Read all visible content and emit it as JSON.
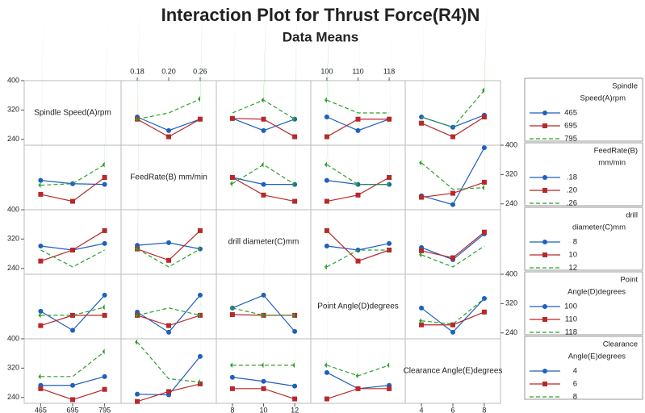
{
  "chart_data": {
    "type": "interaction_matrix",
    "title": "Interaction Plot for Thrust Force(R4)N",
    "subtitle": "Data Means",
    "ylim": [
      224,
      400
    ],
    "yticks": [
      240,
      320,
      400
    ],
    "colors": [
      "#1f5fbf",
      "#b8282a",
      "#2ca02c"
    ],
    "factors": [
      {
        "name": "Spindle Speed(A)rpm",
        "legend_title": [
          "Spindle",
          "Speed(A)rpm"
        ],
        "levels": [
          "465",
          "695",
          "795"
        ],
        "legend_levels": [
          "465",
          "695",
          "795"
        ]
      },
      {
        "name": "FeedRate(B) mm/min",
        "legend_title": [
          "FeedRate(B)",
          "mm/min"
        ],
        "levels": [
          "0.18",
          "0.20",
          "0.26"
        ],
        "legend_levels": [
          ".18",
          ".20",
          ".26"
        ]
      },
      {
        "name": "drill diameter(C)mm",
        "legend_title": [
          "drill",
          "diameter(C)mm"
        ],
        "levels": [
          "8",
          "10",
          "12"
        ],
        "legend_levels": [
          "8",
          "10",
          "12"
        ]
      },
      {
        "name": "Point Angle(D)degrees",
        "legend_title": [
          "Point",
          "Angle(D)degrees"
        ],
        "levels": [
          "100",
          "110",
          "118"
        ],
        "legend_levels": [
          "100",
          "110",
          "118"
        ]
      },
      {
        "name": "Clearance Angle(E)degrees",
        "legend_title": [
          "Clearance",
          "Angle(E)degrees"
        ],
        "levels": [
          "4",
          "6",
          "8"
        ],
        "legend_levels": [
          "4",
          "6",
          "8"
        ]
      }
    ],
    "panels": [
      [
        [
          [
            301,
            264,
            295
          ],
          [
            295,
            247,
            295
          ],
          [
            295,
            312,
            350
          ]
        ],
        [
          [
            297,
            264,
            295
          ],
          [
            297,
            295,
            247
          ],
          [
            312,
            347,
            295
          ]
        ],
        [
          [
            301,
            264,
            295
          ],
          [
            247,
            295,
            295
          ],
          [
            347,
            312,
            312
          ]
        ],
        [
          [
            301,
            273,
            306
          ],
          [
            284,
            247,
            301
          ],
          [
            301,
            273,
            374
          ]
        ]
      ],
      [
        [
          [
            304,
            295,
            293
          ],
          [
            266,
            247,
            312
          ],
          [
            291,
            295,
            347
          ]
        ],
        [
          [
            312,
            293,
            293
          ],
          [
            312,
            264,
            247
          ],
          [
            295,
            347,
            293
          ]
        ],
        [
          [
            304,
            293,
            293
          ],
          [
            247,
            264,
            312
          ],
          [
            347,
            293,
            293
          ]
        ],
        [
          [
            262,
            238,
            393
          ],
          [
            258,
            269,
            299
          ],
          [
            352,
            280,
            284
          ]
        ]
      ],
      [
        [
          [
            301,
            290,
            308
          ],
          [
            260,
            290,
            343
          ],
          [
            290,
            244,
            290
          ]
        ],
        [
          [
            303,
            310,
            293
          ],
          [
            293,
            262,
            343
          ],
          [
            293,
            244,
            293
          ]
        ],
        [
          [
            301,
            290,
            308
          ],
          [
            343,
            260,
            290
          ],
          [
            244,
            290,
            290
          ]
        ],
        [
          [
            297,
            264,
            334
          ],
          [
            288,
            269,
            339
          ],
          [
            277,
            244,
            301
          ]
        ]
      ],
      [
        [
          [
            299,
            247,
            343
          ],
          [
            260,
            288,
            288
          ],
          [
            288,
            288,
            310
          ]
        ],
        [
          [
            297,
            242,
            343
          ],
          [
            288,
            260,
            288
          ],
          [
            288,
            308,
            288
          ]
        ],
        [
          [
            308,
            343,
            244
          ],
          [
            290,
            288,
            288
          ],
          [
            308,
            288,
            288
          ]
        ],
        [
          [
            308,
            242,
            334
          ],
          [
            262,
            262,
            297
          ],
          [
            273,
            264,
            334
          ]
        ]
      ],
      [
        [
          [
            273,
            273,
            297
          ],
          [
            264,
            234,
            262
          ],
          [
            297,
            297,
            365
          ]
        ],
        [
          [
            249,
            247,
            352
          ],
          [
            229,
            256,
            277
          ],
          [
            391,
            291,
            282
          ]
        ],
        [
          [
            295,
            284,
            271
          ],
          [
            264,
            264,
            236
          ],
          [
            328,
            328,
            328
          ]
        ],
        [
          [
            308,
            264,
            273
          ],
          [
            236,
            264,
            264
          ],
          [
            328,
            299,
            328
          ]
        ]
      ]
    ]
  }
}
